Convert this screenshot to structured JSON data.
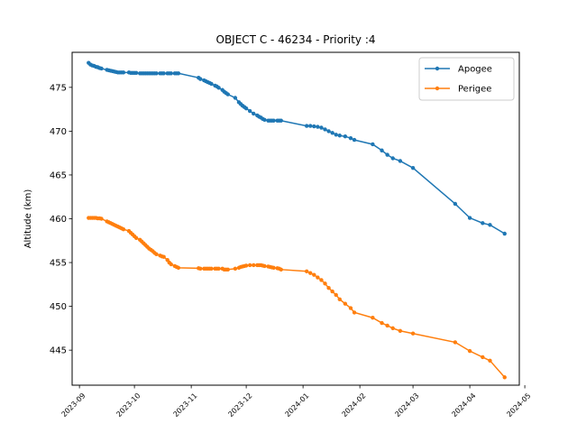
{
  "chart_data": {
    "type": "line",
    "title": "OBJECT C - 46234 - Priority :4",
    "xlabel": "",
    "ylabel": "Altitude (km)",
    "xlim": [
      "2023-08-28",
      "2024-04-28"
    ],
    "ylim": [
      441,
      479
    ],
    "yticks": [
      445,
      450,
      455,
      460,
      465,
      470,
      475
    ],
    "xticks": [
      "2023-09",
      "2023-10",
      "2023-11",
      "2023-12",
      "2024-01",
      "2024-02",
      "2024-03",
      "2024-04",
      "2024-05"
    ],
    "grid": false,
    "legend_position": "top-right",
    "colors": {
      "Apogee": "#1f77b4",
      "Perigee": "#ff7f0e"
    },
    "x": [
      "2023-09-06",
      "2023-09-07",
      "2023-09-08",
      "2023-09-09",
      "2023-09-10",
      "2023-09-11",
      "2023-09-12",
      "2023-09-13",
      "2023-09-16",
      "2023-09-17",
      "2023-09-18",
      "2023-09-19",
      "2023-09-20",
      "2023-09-21",
      "2023-09-22",
      "2023-09-23",
      "2023-09-24",
      "2023-09-25",
      "2023-09-28",
      "2023-09-29",
      "2023-09-30",
      "2023-10-01",
      "2023-10-02",
      "2023-10-04",
      "2023-10-05",
      "2023-10-06",
      "2023-10-07",
      "2023-10-08",
      "2023-10-09",
      "2023-10-10",
      "2023-10-11",
      "2023-10-12",
      "2023-10-13",
      "2023-10-15",
      "2023-10-16",
      "2023-10-17",
      "2023-10-19",
      "2023-10-20",
      "2023-10-21",
      "2023-10-23",
      "2023-10-24",
      "2023-10-25",
      "2023-11-05",
      "2023-11-06",
      "2023-11-08",
      "2023-11-09",
      "2023-11-10",
      "2023-11-11",
      "2023-11-12",
      "2023-11-14",
      "2023-11-15",
      "2023-11-16",
      "2023-11-18",
      "2023-11-19",
      "2023-11-20",
      "2023-11-21",
      "2023-11-25",
      "2023-11-27",
      "2023-11-28",
      "2023-11-29",
      "2023-11-30",
      "2023-12-01",
      "2023-12-03",
      "2023-12-05",
      "2023-12-07",
      "2023-12-08",
      "2023-12-09",
      "2023-12-10",
      "2023-12-11",
      "2023-12-13",
      "2023-12-14",
      "2023-12-15",
      "2023-12-16",
      "2023-12-18",
      "2023-12-19",
      "2023-12-20",
      "2024-01-03",
      "2024-01-05",
      "2024-01-07",
      "2024-01-09",
      "2024-01-11",
      "2024-01-13",
      "2024-01-15",
      "2024-01-17",
      "2024-01-19",
      "2024-01-21",
      "2024-01-24",
      "2024-01-27",
      "2024-01-29",
      "2024-02-08",
      "2024-02-13",
      "2024-02-16",
      "2024-02-19",
      "2024-02-23",
      "2024-03-01",
      "2024-03-24",
      "2024-04-01",
      "2024-04-08",
      "2024-04-12",
      "2024-04-20"
    ],
    "series": [
      {
        "name": "Apogee",
        "values": [
          477.8,
          477.6,
          477.5,
          477.45,
          477.35,
          477.3,
          477.2,
          477.15,
          477.0,
          476.95,
          476.9,
          476.85,
          476.8,
          476.75,
          476.7,
          476.7,
          476.7,
          476.7,
          476.7,
          476.65,
          476.65,
          476.65,
          476.65,
          476.6,
          476.6,
          476.6,
          476.6,
          476.6,
          476.6,
          476.6,
          476.6,
          476.6,
          476.6,
          476.6,
          476.6,
          476.6,
          476.6,
          476.6,
          476.6,
          476.6,
          476.6,
          476.6,
          476.1,
          475.95,
          475.8,
          475.7,
          475.6,
          475.5,
          475.4,
          475.2,
          475.1,
          474.95,
          474.7,
          474.5,
          474.35,
          474.2,
          473.8,
          473.3,
          473.1,
          472.9,
          472.75,
          472.6,
          472.3,
          472.0,
          471.8,
          471.65,
          471.55,
          471.4,
          471.3,
          471.2,
          471.2,
          471.2,
          471.2,
          471.2,
          471.2,
          471.2,
          470.6,
          470.6,
          470.55,
          470.5,
          470.4,
          470.2,
          470.0,
          469.8,
          469.6,
          469.5,
          469.4,
          469.2,
          469.0,
          468.5,
          467.8,
          467.3,
          466.9,
          466.6,
          465.8,
          461.7,
          460.1,
          459.5,
          459.3,
          458.3
        ]
      },
      {
        "name": "Perigee",
        "values": [
          460.1,
          460.1,
          460.1,
          460.1,
          460.1,
          460.05,
          460.05,
          460.0,
          459.7,
          459.6,
          459.5,
          459.4,
          459.3,
          459.2,
          459.1,
          459.0,
          458.9,
          458.8,
          458.6,
          458.4,
          458.2,
          458.0,
          457.8,
          457.6,
          457.4,
          457.2,
          457.0,
          456.8,
          456.6,
          456.45,
          456.3,
          456.1,
          455.95,
          455.8,
          455.7,
          455.65,
          455.3,
          455.0,
          454.8,
          454.6,
          454.5,
          454.4,
          454.35,
          454.3,
          454.3,
          454.3,
          454.3,
          454.3,
          454.3,
          454.3,
          454.3,
          454.3,
          454.3,
          454.2,
          454.2,
          454.2,
          454.3,
          454.4,
          454.5,
          454.55,
          454.6,
          454.65,
          454.7,
          454.7,
          454.7,
          454.7,
          454.7,
          454.65,
          454.6,
          454.55,
          454.5,
          454.45,
          454.4,
          454.35,
          454.3,
          454.2,
          454.0,
          453.8,
          453.6,
          453.3,
          453.0,
          452.6,
          452.1,
          451.7,
          451.3,
          450.8,
          450.3,
          449.8,
          449.3,
          448.7,
          448.1,
          447.8,
          447.5,
          447.2,
          446.9,
          445.9,
          444.9,
          444.2,
          443.8,
          441.9
        ]
      }
    ]
  }
}
